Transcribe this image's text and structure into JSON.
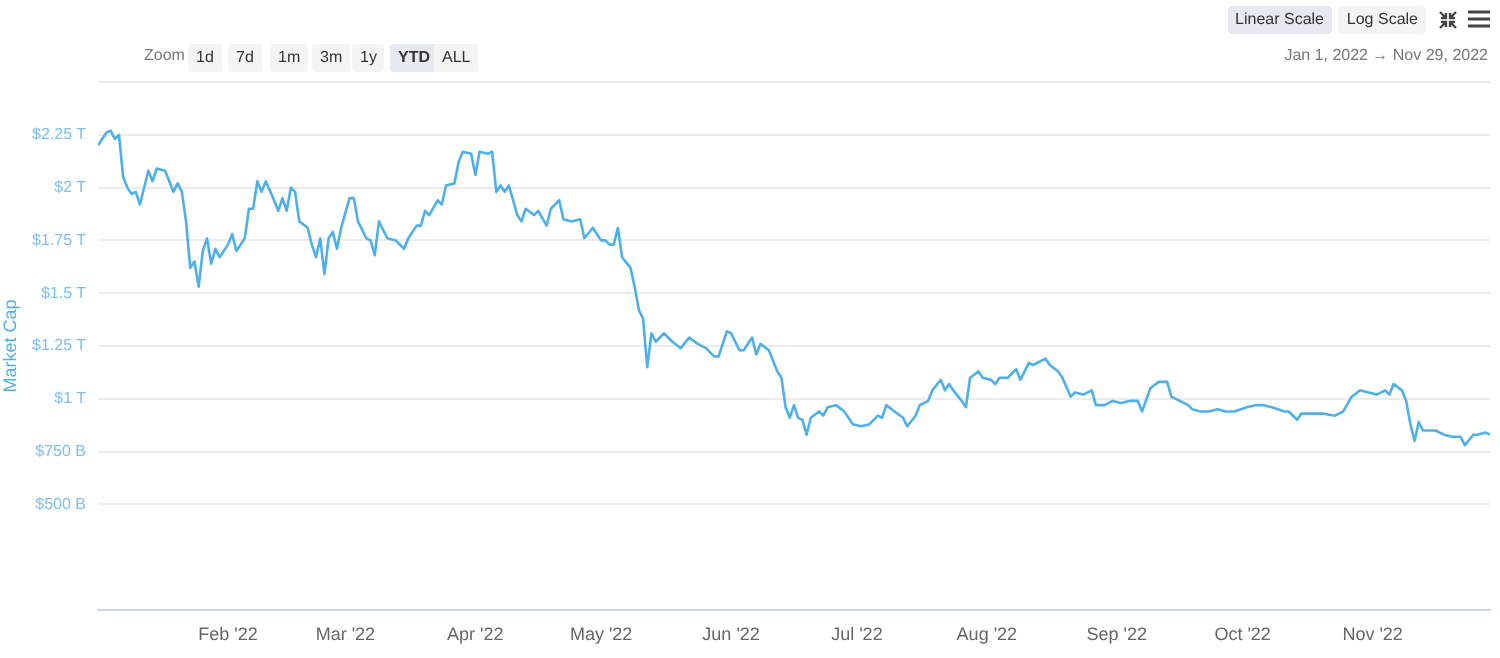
{
  "chart_data": {
    "type": "line",
    "ylabel": "Market Cap",
    "grid": "y",
    "annotations": [
      "Zoom",
      "1d",
      "7d",
      "1m",
      "3m",
      "1y",
      "YTD",
      "ALL",
      "Jan 1, 2022",
      "→",
      "Nov 29, 2022",
      "Linear Scale",
      "Log Scale"
    ],
    "xlim": [
      "2022-01-01",
      "2022-11-29"
    ],
    "xticks": [
      {
        "value": "2022-02-01",
        "label": "Feb '22"
      },
      {
        "value": "2022-03-01",
        "label": "Mar '22"
      },
      {
        "value": "2022-04-01",
        "label": "Apr '22"
      },
      {
        "value": "2022-05-01",
        "label": "May '22"
      },
      {
        "value": "2022-06-01",
        "label": "Jun '22"
      },
      {
        "value": "2022-07-01",
        "label": "Jul '22"
      },
      {
        "value": "2022-08-01",
        "label": "Aug '22"
      },
      {
        "value": "2022-09-01",
        "label": "Sep '22"
      },
      {
        "value": "2022-10-01",
        "label": "Oct '22"
      },
      {
        "value": "2022-11-01",
        "label": "Nov '22"
      }
    ],
    "ylim": [
      0,
      2500000000000.0
    ],
    "yticks": [
      {
        "value": 500000000000.0,
        "label": "$500 B"
      },
      {
        "value": 750000000000.0,
        "label": "$750 B"
      },
      {
        "value": 1000000000000.0,
        "label": "$1 T"
      },
      {
        "value": 1250000000000.0,
        "label": "$1.25 T"
      },
      {
        "value": 1500000000000.0,
        "label": "$1.5 T"
      },
      {
        "value": 1750000000000.0,
        "label": "$1.75 T"
      },
      {
        "value": 2000000000000.0,
        "label": "$2 T"
      },
      {
        "value": 2250000000000.0,
        "label": "$2.25 T"
      },
      {
        "value": 2500000000000.0,
        "label": null
      }
    ],
    "series": [
      {
        "color": "#4fb0e8",
        "x": [
          "2022-01-01",
          "2022-01-03",
          "2022-01-04",
          "2022-01-05",
          "2022-01-06",
          "2022-01-07",
          "2022-01-08",
          "2022-01-09",
          "2022-01-10",
          "2022-01-11",
          "2022-01-13",
          "2022-01-14",
          "2022-01-15",
          "2022-01-17",
          "2022-01-19",
          "2022-01-20",
          "2022-01-21",
          "2022-01-22",
          "2022-01-23",
          "2022-01-24",
          "2022-01-25",
          "2022-01-26",
          "2022-01-27",
          "2022-01-28",
          "2022-01-29",
          "2022-01-30",
          "2022-02-01",
          "2022-02-02",
          "2022-02-03",
          "2022-02-05",
          "2022-02-06",
          "2022-02-07",
          "2022-02-08",
          "2022-02-09",
          "2022-02-10",
          "2022-02-12",
          "2022-02-13",
          "2022-02-14",
          "2022-02-15",
          "2022-02-16",
          "2022-02-17",
          "2022-02-18",
          "2022-02-20",
          "2022-02-21",
          "2022-02-22",
          "2022-02-23",
          "2022-02-24",
          "2022-02-25",
          "2022-02-26",
          "2022-02-27",
          "2022-02-28",
          "2022-03-02",
          "2022-03-03",
          "2022-03-04",
          "2022-03-06",
          "2022-03-07",
          "2022-03-08",
          "2022-03-09",
          "2022-03-11",
          "2022-03-13",
          "2022-03-15",
          "2022-03-16",
          "2022-03-18",
          "2022-03-19",
          "2022-03-20",
          "2022-03-21",
          "2022-03-23",
          "2022-03-24",
          "2022-03-25",
          "2022-03-27",
          "2022-03-28",
          "2022-03-29",
          "2022-03-31",
          "2022-04-01",
          "2022-04-02",
          "2022-04-04",
          "2022-04-05",
          "2022-04-06",
          "2022-04-07",
          "2022-04-08",
          "2022-04-09",
          "2022-04-11",
          "2022-04-12",
          "2022-04-13",
          "2022-04-15",
          "2022-04-16",
          "2022-04-18",
          "2022-04-19",
          "2022-04-21",
          "2022-04-22",
          "2022-04-24",
          "2022-04-26",
          "2022-04-27",
          "2022-04-29",
          "2022-05-01",
          "2022-05-02",
          "2022-05-03",
          "2022-05-04",
          "2022-05-05",
          "2022-05-06",
          "2022-05-08",
          "2022-05-09",
          "2022-05-10",
          "2022-05-11",
          "2022-05-12",
          "2022-05-13",
          "2022-05-14",
          "2022-05-16",
          "2022-05-18",
          "2022-05-20",
          "2022-05-22",
          "2022-05-24",
          "2022-05-26",
          "2022-05-28",
          "2022-05-29",
          "2022-05-31",
          "2022-06-01",
          "2022-06-03",
          "2022-06-04",
          "2022-06-06",
          "2022-06-07",
          "2022-06-08",
          "2022-06-10",
          "2022-06-12",
          "2022-06-13",
          "2022-06-14",
          "2022-06-15",
          "2022-06-16",
          "2022-06-17",
          "2022-06-18",
          "2022-06-19",
          "2022-06-20",
          "2022-06-22",
          "2022-06-23",
          "2022-06-24",
          "2022-06-26",
          "2022-06-28",
          "2022-06-30",
          "2022-07-02",
          "2022-07-04",
          "2022-07-06",
          "2022-07-07",
          "2022-07-08",
          "2022-07-10",
          "2022-07-12",
          "2022-07-13",
          "2022-07-15",
          "2022-07-16",
          "2022-07-18",
          "2022-07-19",
          "2022-07-21",
          "2022-07-22",
          "2022-07-23",
          "2022-07-24",
          "2022-07-26",
          "2022-07-27",
          "2022-07-28",
          "2022-07-30",
          "2022-07-31",
          "2022-08-02",
          "2022-08-03",
          "2022-08-04",
          "2022-08-06",
          "2022-08-08",
          "2022-08-09",
          "2022-08-10",
          "2022-08-11",
          "2022-08-12",
          "2022-08-15",
          "2022-08-16",
          "2022-08-18",
          "2022-08-19",
          "2022-08-21",
          "2022-08-22",
          "2022-08-24",
          "2022-08-26",
          "2022-08-27",
          "2022-08-29",
          "2022-08-31",
          "2022-09-02",
          "2022-09-04",
          "2022-09-06",
          "2022-09-07",
          "2022-09-09",
          "2022-09-11",
          "2022-09-13",
          "2022-09-14",
          "2022-09-16",
          "2022-09-18",
          "2022-09-19",
          "2022-09-21",
          "2022-09-23",
          "2022-09-25",
          "2022-09-27",
          "2022-09-29",
          "2022-10-02",
          "2022-10-04",
          "2022-10-06",
          "2022-10-08",
          "2022-10-11",
          "2022-10-12",
          "2022-10-14",
          "2022-10-15",
          "2022-10-18",
          "2022-10-20",
          "2022-10-23",
          "2022-10-25",
          "2022-10-27",
          "2022-10-29",
          "2022-10-31",
          "2022-11-02",
          "2022-11-04",
          "2022-11-05",
          "2022-11-06",
          "2022-11-08",
          "2022-11-09",
          "2022-11-10",
          "2022-11-11",
          "2022-11-12",
          "2022-11-13",
          "2022-11-14",
          "2022-11-16",
          "2022-11-18",
          "2022-11-20",
          "2022-11-22",
          "2022-11-23",
          "2022-11-25",
          "2022-11-26",
          "2022-11-28",
          "2022-11-29"
        ],
        "values": [
          2200000000000.0,
          2260000000000.0,
          2270000000000.0,
          2230000000000.0,
          2250000000000.0,
          2050000000000.0,
          2000000000000.0,
          1970000000000.0,
          1980000000000.0,
          1920000000000.0,
          2080000000000.0,
          2030000000000.0,
          2090000000000.0,
          2080000000000.0,
          1980000000000.0,
          2020000000000.0,
          1980000000000.0,
          1840000000000.0,
          1620000000000.0,
          1650000000000.0,
          1530000000000.0,
          1700000000000.0,
          1760000000000.0,
          1640000000000.0,
          1710000000000.0,
          1670000000000.0,
          1730000000000.0,
          1780000000000.0,
          1700000000000.0,
          1760000000000.0,
          1900000000000.0,
          1900000000000.0,
          2030000000000.0,
          1980000000000.0,
          2030000000000.0,
          1940000000000.0,
          1890000000000.0,
          1950000000000.0,
          1890000000000.0,
          2000000000000.0,
          1980000000000.0,
          1840000000000.0,
          1810000000000.0,
          1730000000000.0,
          1670000000000.0,
          1760000000000.0,
          1590000000000.0,
          1760000000000.0,
          1790000000000.0,
          1710000000000.0,
          1810000000000.0,
          1950000000000.0,
          1950000000000.0,
          1840000000000.0,
          1760000000000.0,
          1750000000000.0,
          1680000000000.0,
          1840000000000.0,
          1760000000000.0,
          1750000000000.0,
          1710000000000.0,
          1760000000000.0,
          1820000000000.0,
          1820000000000.0,
          1890000000000.0,
          1870000000000.0,
          1940000000000.0,
          1920000000000.0,
          2010000000000.0,
          2020000000000.0,
          2120000000000.0,
          2170000000000.0,
          2160000000000.0,
          2060000000000.0,
          2170000000000.0,
          2160000000000.0,
          2170000000000.0,
          1980000000000.0,
          2010000000000.0,
          1980000000000.0,
          2010000000000.0,
          1870000000000.0,
          1840000000000.0,
          1900000000000.0,
          1870000000000.0,
          1890000000000.0,
          1820000000000.0,
          1900000000000.0,
          1940000000000.0,
          1850000000000.0,
          1840000000000.0,
          1850000000000.0,
          1760000000000.0,
          1810000000000.0,
          1750000000000.0,
          1750000000000.0,
          1730000000000.0,
          1730000000000.0,
          1810000000000.0,
          1670000000000.0,
          1620000000000.0,
          1530000000000.0,
          1420000000000.0,
          1380000000000.0,
          1150000000000.0,
          1310000000000.0,
          1270000000000.0,
          1310000000000.0,
          1270000000000.0,
          1240000000000.0,
          1290000000000.0,
          1260000000000.0,
          1240000000000.0,
          1200000000000.0,
          1200000000000.0,
          1320000000000.0,
          1310000000000.0,
          1230000000000.0,
          1230000000000.0,
          1290000000000.0,
          1210000000000.0,
          1260000000000.0,
          1230000000000.0,
          1130000000000.0,
          1100000000000.0,
          960000000000.0,
          910000000000.0,
          970000000000.0,
          910000000000.0,
          900000000000.0,
          830000000000.0,
          910000000000.0,
          940000000000.0,
          920000000000.0,
          960000000000.0,
          970000000000.0,
          940000000000.0,
          880000000000.0,
          870000000000.0,
          880000000000.0,
          920000000000.0,
          910000000000.0,
          970000000000.0,
          940000000000.0,
          910000000000.0,
          870000000000.0,
          920000000000.0,
          970000000000.0,
          990000000000.0,
          1040000000000.0,
          1090000000000.0,
          1040000000000.0,
          1070000000000.0,
          1040000000000.0,
          990000000000.0,
          960000000000.0,
          1100000000000.0,
          1130000000000.0,
          1100000000000.0,
          1090000000000.0,
          1070000000000.0,
          1100000000000.0,
          1100000000000.0,
          1140000000000.0,
          1090000000000.0,
          1130000000000.0,
          1170000000000.0,
          1160000000000.0,
          1190000000000.0,
          1160000000000.0,
          1130000000000.0,
          1100000000000.0,
          1010000000000.0,
          1030000000000.0,
          1020000000000.0,
          1040000000000.0,
          970000000000.0,
          970000000000.0,
          990000000000.0,
          980000000000.0,
          990000000000.0,
          990000000000.0,
          940000000000.0,
          1050000000000.0,
          1080000000000.0,
          1080000000000.0,
          1010000000000.0,
          990000000000.0,
          970000000000.0,
          950000000000.0,
          940000000000.0,
          940000000000.0,
          950000000000.0,
          940000000000.0,
          940000000000.0,
          960000000000.0,
          970000000000.0,
          970000000000.0,
          960000000000.0,
          940000000000.0,
          940000000000.0,
          900000000000.0,
          930000000000.0,
          930000000000.0,
          930000000000.0,
          920000000000.0,
          940000000000.0,
          1010000000000.0,
          1040000000000.0,
          1030000000000.0,
          1020000000000.0,
          1040000000000.0,
          1020000000000.0,
          1070000000000.0,
          1040000000000.0,
          990000000000.0,
          880000000000.0,
          800000000000.0,
          890000000000.0,
          850000000000.0,
          850000000000.0,
          850000000000.0,
          830000000000.0,
          820000000000.0,
          820000000000.0,
          780000000000.0,
          830000000000.0,
          830000000000.0,
          840000000000.0,
          830000000000.0
        ]
      }
    ]
  }
}
